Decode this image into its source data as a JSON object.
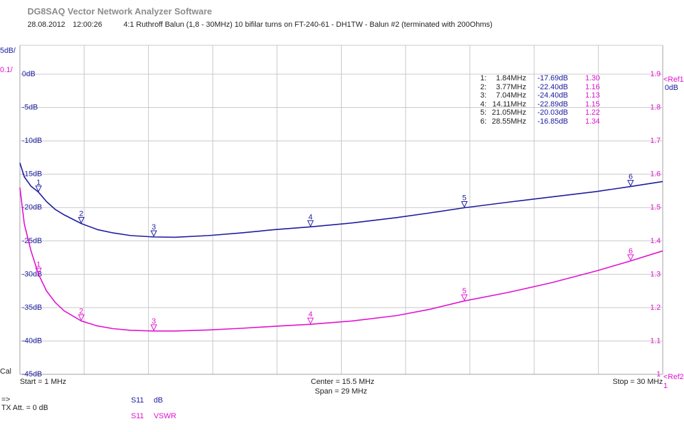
{
  "window": {
    "title": "DG8SAQ Vector Network Analyzer Software",
    "date": "28.08.2012",
    "time": "12:00:26",
    "description": "4:1 Ruthroff Balun (1,8 - 30MHz) 10 bifilar turns on FT-240-61 - DH1TW - Balun #2 (terminated with 200Ohms)"
  },
  "colors": {
    "trace1": "#1a1aa0",
    "trace2": "#e010d0",
    "grid": "#c8c8c8",
    "frame": "#a0a0a0"
  },
  "chart_data": {
    "type": "line",
    "x_range_mhz": [
      1,
      30
    ],
    "left_axis": {
      "scale_label": "5dB/",
      "ticks": [
        "0dB",
        "-5dB",
        "-10dB",
        "-15dB",
        "-20dB",
        "-25dB",
        "-30dB",
        "-35dB",
        "-40dB",
        "-45dB"
      ],
      "range": [
        -45,
        0
      ]
    },
    "left_axis2": {
      "scale_label": "0.1/"
    },
    "right_axis": {
      "ticks": [
        "1.9",
        "1.8",
        "1.7",
        "1.6",
        "1.5",
        "1.4",
        "1.3",
        "1.2",
        "1.1",
        "1"
      ],
      "range": [
        1.0,
        1.9
      ],
      "ref1_label": "<Ref1",
      "ref1_value": "0dB",
      "ref2_label": "<Ref2",
      "ref2_value": "1"
    },
    "cal_label": "Cal",
    "series": [
      {
        "name": "S11 dB",
        "x": [
          1,
          1.2,
          1.5,
          1.84,
          2.2,
          2.6,
          3.0,
          3.77,
          4.5,
          5.2,
          6.0,
          7.04,
          8.0,
          9.5,
          11,
          12.5,
          14.11,
          16,
          18,
          19.5,
          21.05,
          23,
          25,
          27,
          28.55,
          30
        ],
        "y": [
          -13.3,
          -15.4,
          -16.8,
          -17.69,
          -19.1,
          -20.3,
          -21.1,
          -22.4,
          -23.3,
          -23.8,
          -24.2,
          -24.4,
          -24.45,
          -24.2,
          -23.8,
          -23.3,
          -22.89,
          -22.3,
          -21.5,
          -20.8,
          -20.03,
          -19.2,
          -18.4,
          -17.6,
          -16.85,
          -16.1
        ]
      },
      {
        "name": "S11 VSWR",
        "x": [
          1,
          1.2,
          1.5,
          1.84,
          2.2,
          2.6,
          3.0,
          3.77,
          4.5,
          5.2,
          6.0,
          7.04,
          8.0,
          9.5,
          11,
          12.5,
          14.11,
          16,
          18,
          19.5,
          21.05,
          23,
          25,
          27,
          28.55,
          30
        ],
        "y": [
          1.56,
          1.45,
          1.37,
          1.3,
          1.25,
          1.215,
          1.19,
          1.16,
          1.145,
          1.137,
          1.132,
          1.13,
          1.13,
          1.133,
          1.138,
          1.144,
          1.15,
          1.16,
          1.176,
          1.195,
          1.22,
          1.245,
          1.275,
          1.31,
          1.34,
          1.37
        ]
      }
    ],
    "markers": [
      {
        "id": "1",
        "freq": "1.84MHz",
        "x": 1.84,
        "db": "-17.69dB",
        "db_val": -17.69,
        "vswr": "1.30",
        "vswr_val": 1.3
      },
      {
        "id": "2",
        "freq": "3.77MHz",
        "x": 3.77,
        "db": "-22.40dB",
        "db_val": -22.4,
        "vswr": "1.16",
        "vswr_val": 1.16
      },
      {
        "id": "3",
        "freq": "7.04MHz",
        "x": 7.04,
        "db": "-24.40dB",
        "db_val": -24.4,
        "vswr": "1.13",
        "vswr_val": 1.13
      },
      {
        "id": "4",
        "freq": "14.11MHz",
        "x": 14.11,
        "db": "-22.89dB",
        "db_val": -22.89,
        "vswr": "1.15",
        "vswr_val": 1.15
      },
      {
        "id": "5",
        "freq": "21.05MHz",
        "x": 21.05,
        "db": "-20.03dB",
        "db_val": -20.03,
        "vswr": "1.22",
        "vswr_val": 1.22
      },
      {
        "id": "6",
        "freq": "28.55MHz",
        "x": 28.55,
        "db": "-16.85dB",
        "db_val": -16.85,
        "vswr": "1.34",
        "vswr_val": 1.34
      }
    ],
    "x_labels": {
      "start": "Start = 1 MHz",
      "center": "Center = 15.5 MHz",
      "span": "Span = 29 MHz",
      "stop": "Stop = 30 MHz"
    }
  },
  "footer": {
    "arrow": "=>",
    "tx_att": "TX Att.  = 0 dB",
    "legend": [
      {
        "param": "S11",
        "format": "dB"
      },
      {
        "param": "S11",
        "format": "VSWR"
      }
    ]
  }
}
